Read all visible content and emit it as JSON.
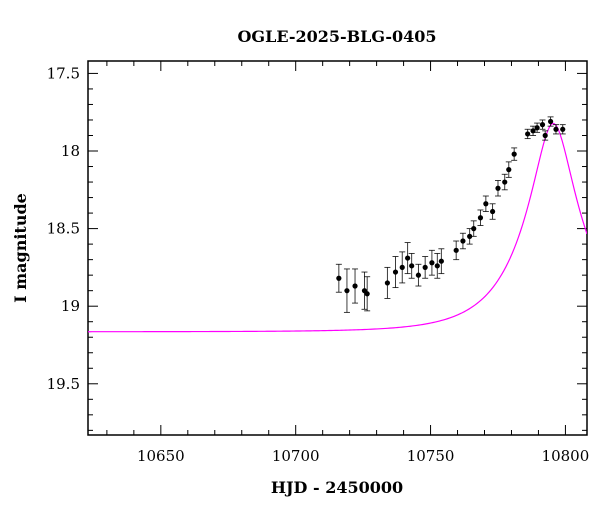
{
  "chart_data": {
    "type": "scatter",
    "title": "OGLE-2025-BLG-0405",
    "xlabel": "HJD - 2450000",
    "ylabel": "I magnitude",
    "xlim": [
      10623,
      10808
    ],
    "ylim": [
      19.83,
      17.42
    ],
    "y_inverted": true,
    "x_ticks": [
      10650,
      10700,
      10750,
      10800
    ],
    "y_ticks": [
      17.5,
      18,
      18.5,
      19,
      19.5
    ],
    "x_tick_labels": [
      "10650",
      "10700",
      "10750",
      "10800"
    ],
    "y_tick_labels": [
      "17.5",
      "18",
      "18.5",
      "19",
      "19.5"
    ],
    "grid": false,
    "colors": {
      "data": "#000000",
      "model": "#ff00ff",
      "axes": "#000000"
    },
    "series": [
      {
        "kind": "points_with_errorbars",
        "points": [
          {
            "x": 10716.0,
            "y": 18.82,
            "err": 0.09
          },
          {
            "x": 10719.0,
            "y": 18.9,
            "err": 0.14
          },
          {
            "x": 10722.0,
            "y": 18.87,
            "err": 0.11
          },
          {
            "x": 10725.5,
            "y": 18.9,
            "err": 0.12
          },
          {
            "x": 10726.5,
            "y": 18.92,
            "err": 0.11
          },
          {
            "x": 10734.0,
            "y": 18.85,
            "err": 0.1
          },
          {
            "x": 10737.0,
            "y": 18.78,
            "err": 0.1
          },
          {
            "x": 10739.5,
            "y": 18.75,
            "err": 0.1
          },
          {
            "x": 10741.5,
            "y": 18.69,
            "err": 0.1
          },
          {
            "x": 10743.0,
            "y": 18.74,
            "err": 0.08
          },
          {
            "x": 10745.5,
            "y": 18.8,
            "err": 0.07
          },
          {
            "x": 10748.0,
            "y": 18.75,
            "err": 0.07
          },
          {
            "x": 10750.5,
            "y": 18.72,
            "err": 0.08
          },
          {
            "x": 10752.5,
            "y": 18.74,
            "err": 0.08
          },
          {
            "x": 10754.0,
            "y": 18.71,
            "err": 0.08
          },
          {
            "x": 10759.5,
            "y": 18.64,
            "err": 0.06
          },
          {
            "x": 10762.0,
            "y": 18.58,
            "err": 0.05
          },
          {
            "x": 10764.5,
            "y": 18.55,
            "err": 0.05
          },
          {
            "x": 10766.0,
            "y": 18.5,
            "err": 0.05
          },
          {
            "x": 10768.5,
            "y": 18.43,
            "err": 0.05
          },
          {
            "x": 10770.5,
            "y": 18.34,
            "err": 0.05
          },
          {
            "x": 10773.0,
            "y": 18.39,
            "err": 0.05
          },
          {
            "x": 10775.0,
            "y": 18.24,
            "err": 0.05
          },
          {
            "x": 10777.5,
            "y": 18.2,
            "err": 0.05
          },
          {
            "x": 10779.0,
            "y": 18.12,
            "err": 0.05
          },
          {
            "x": 10781.0,
            "y": 18.02,
            "err": 0.04
          },
          {
            "x": 10786.0,
            "y": 17.89,
            "err": 0.03
          },
          {
            "x": 10788.0,
            "y": 17.87,
            "err": 0.03
          },
          {
            "x": 10789.5,
            "y": 17.85,
            "err": 0.03
          },
          {
            "x": 10791.5,
            "y": 17.83,
            "err": 0.03
          },
          {
            "x": 10792.5,
            "y": 17.9,
            "err": 0.03
          },
          {
            "x": 10794.5,
            "y": 17.81,
            "err": 0.03
          },
          {
            "x": 10796.5,
            "y": 17.86,
            "err": 0.03
          },
          {
            "x": 10799.0,
            "y": 17.86,
            "err": 0.03
          }
        ]
      },
      {
        "kind": "model_curve",
        "t0": 10795.5,
        "tE": 22,
        "u0": 0.3,
        "I_base": 19.165,
        "x_range": [
          10623,
          10808
        ]
      }
    ]
  }
}
